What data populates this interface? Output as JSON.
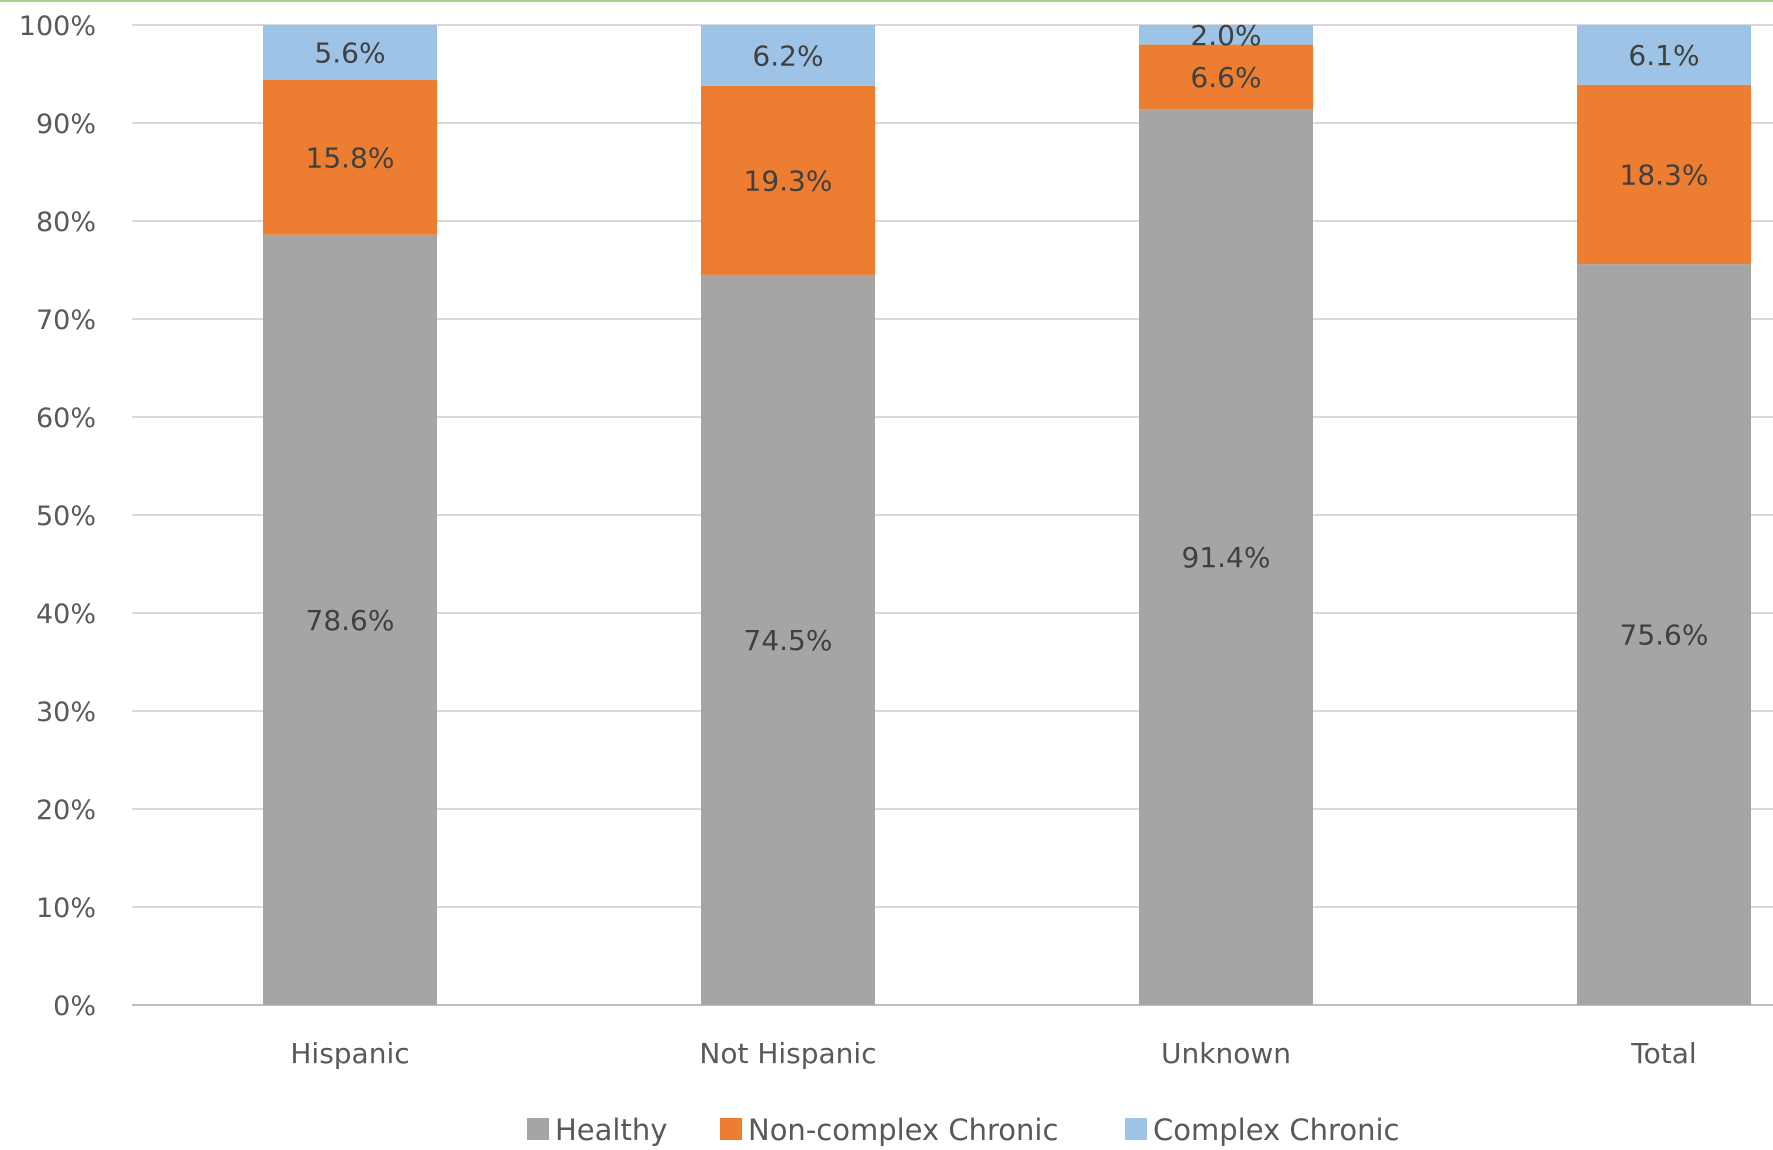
{
  "chart_data": {
    "type": "bar",
    "stacked": true,
    "categories": [
      "Hispanic",
      "Not Hispanic",
      "Unknown",
      "Total"
    ],
    "series": [
      {
        "name": "Healthy",
        "color": "#a5a5a5",
        "values": [
          78.6,
          74.5,
          91.4,
          75.6
        ],
        "labels": [
          "78.6%",
          "74.5%",
          "91.4%",
          "75.6%"
        ]
      },
      {
        "name": "Non-complex Chronic",
        "color": "#ed7d31",
        "values": [
          15.8,
          19.3,
          6.6,
          18.3
        ],
        "labels": [
          "15.8%",
          "19.3%",
          "6.6%",
          "18.3%"
        ]
      },
      {
        "name": "Complex Chronic",
        "color": "#9dc3e6",
        "values": [
          5.6,
          6.2,
          2.0,
          6.1
        ],
        "labels": [
          "5.6%",
          "6.2%",
          "2.0%",
          "6.1%"
        ]
      }
    ],
    "yticks": [
      "0%",
      "10%",
      "20%",
      "30%",
      "40%",
      "50%",
      "60%",
      "70%",
      "80%",
      "90%",
      "100%"
    ],
    "ylim": [
      0,
      100
    ],
    "grid": true,
    "legend": "bottom"
  }
}
